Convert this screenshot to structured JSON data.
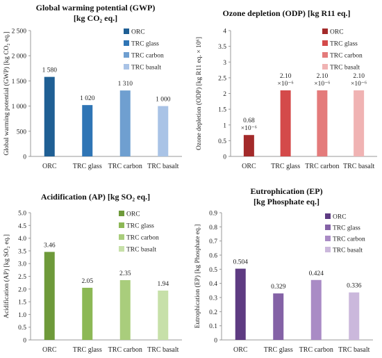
{
  "chart_data": [
    {
      "type": "bar",
      "title": "Global warming potential (GWP)",
      "subtitle": "[kg CO₂ eq.]",
      "ylabel": "Global warming potential (GWP) [kg CO₂ eq.]",
      "xlabel": "",
      "categories": [
        "ORC",
        "TRC glass",
        "TRC carbon",
        "TRC basalt"
      ],
      "values": [
        1580,
        1020,
        1310,
        1000
      ],
      "data_labels": [
        [
          "1 580"
        ],
        [
          "1 020"
        ],
        [
          "1 310"
        ],
        [
          "1 000"
        ]
      ],
      "ylim": [
        0,
        2500
      ],
      "yticks": [
        0,
        500,
        1000,
        1500,
        2000,
        2500
      ],
      "ytick_labels": [
        "0",
        "500",
        "1 000",
        "1 500",
        "2 000",
        "2 500"
      ],
      "colors": [
        "#1f5f94",
        "#2f75b5",
        "#6f9fd0",
        "#a9c3e6"
      ],
      "legend": [
        "ORC",
        "TRC glass",
        "TRC carbon",
        "TRC basalt"
      ],
      "legend_position": "top-right",
      "grid": false
    },
    {
      "type": "bar",
      "title": "Ozone depletion  (ODP)  [kg R11 eq.]",
      "subtitle": "",
      "ylabel": "Ozone depletion (ODP) [kg R11 eq. × 10⁶]",
      "xlabel": "",
      "categories": [
        "ORC",
        "TRC glass",
        "TRC carbon",
        "TRC basalt"
      ],
      "values": [
        0.68,
        2.1,
        2.1,
        2.1
      ],
      "data_labels": [
        [
          "0.68",
          "×10⁻⁶"
        ],
        [
          "2.10",
          "×10⁻⁶"
        ],
        [
          "2.10",
          "×10⁻⁶"
        ],
        [
          "2.10",
          "×10⁻⁶"
        ]
      ],
      "ylim": [
        0,
        4
      ],
      "yticks": [
        0,
        0.5,
        1,
        1.5,
        2,
        2.5,
        3,
        3.5,
        4
      ],
      "ytick_labels": [
        "0",
        "0.5",
        "1",
        "1.5",
        "2",
        "2.5",
        "3",
        "3.5",
        "4"
      ],
      "colors": [
        "#a32a2a",
        "#d44a4a",
        "#e47b7b",
        "#f0b3b3"
      ],
      "legend": [
        "ORC",
        "TRC glass",
        "TRC carbon",
        "TRC basalt"
      ],
      "legend_position": "top-right",
      "grid": false
    },
    {
      "type": "bar",
      "title": "Acidification (AP)  [kg SO₂ eq.]",
      "subtitle": "",
      "ylabel": "Acidification (AP) [kg SO₂ eq.]",
      "xlabel": "",
      "categories": [
        "ORC",
        "TRC glass",
        "TRC carbon",
        "TRC basalt"
      ],
      "values": [
        3.46,
        2.05,
        2.35,
        1.94
      ],
      "data_labels": [
        [
          "3.46"
        ],
        [
          "2.05"
        ],
        [
          "2.35"
        ],
        [
          "1.94"
        ]
      ],
      "ylim": [
        0,
        5
      ],
      "yticks": [
        0,
        0.5,
        1,
        1.5,
        2,
        2.5,
        3,
        3.5,
        4,
        4.5,
        5
      ],
      "ytick_labels": [
        "0",
        "0.5",
        "1.0",
        "1.5",
        "2.0",
        "2.5",
        "3.0",
        "3.5",
        "4.0",
        "4.5",
        "5.0"
      ],
      "colors": [
        "#6e9a3a",
        "#8cb855",
        "#a9cd7c",
        "#c7e0a9"
      ],
      "legend": [
        "ORC",
        "TRC glass",
        "TRC carbon",
        "TRC basalt"
      ],
      "legend_position": "top-right",
      "grid": false
    },
    {
      "type": "bar",
      "title": "Eutrophication (EP)",
      "subtitle": "[kg Phosphate eq.]",
      "ylabel": "Eutrophication (EP) [kg Phosphate eq.]",
      "xlabel": "",
      "categories": [
        "ORC",
        "TRC glass",
        "TRC carbon",
        "TRC basalt"
      ],
      "values": [
        0.504,
        0.329,
        0.424,
        0.336
      ],
      "data_labels": [
        [
          "0.504"
        ],
        [
          "0.329"
        ],
        [
          "0.424"
        ],
        [
          "0.336"
        ]
      ],
      "ylim": [
        0,
        0.9
      ],
      "yticks": [
        0,
        0.1,
        0.2,
        0.3,
        0.4,
        0.5,
        0.6,
        0.7,
        0.8,
        0.9
      ],
      "ytick_labels": [
        "0",
        "0.1",
        "0.2",
        "0.3",
        "0.4",
        "0.5",
        "0.6",
        "0.7",
        "0.8",
        "0.9"
      ],
      "colors": [
        "#5e3b82",
        "#8462a6",
        "#a98bc5",
        "#cbb8dc"
      ],
      "legend": [
        "ORC",
        "TRC glass",
        "TRC carbon",
        "TRC basalt"
      ],
      "legend_position": "top-right",
      "grid": false
    }
  ]
}
